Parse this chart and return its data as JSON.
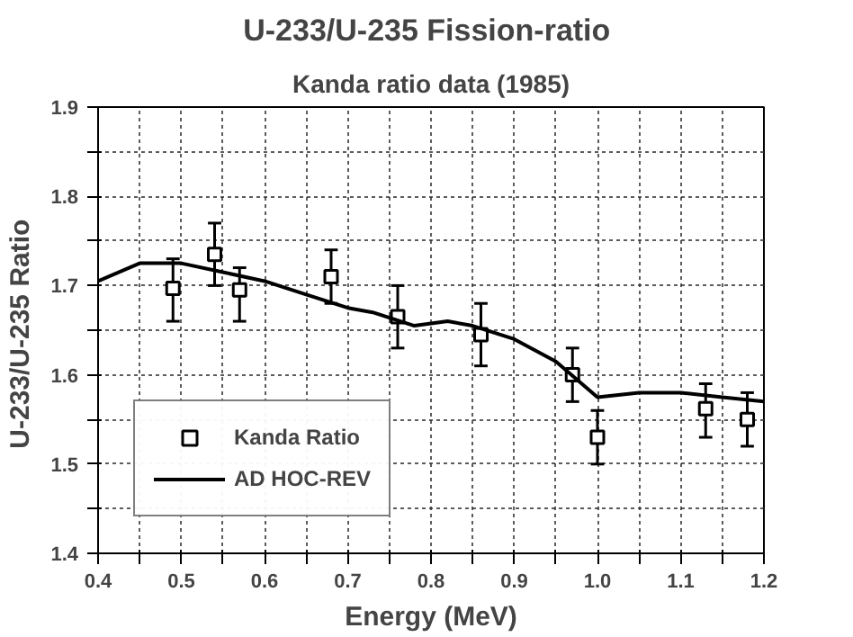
{
  "chart_data": {
    "type": "scatter",
    "title": "U-233/U-235  Fission-ratio",
    "subtitle": "Kanda ratio data (1985)",
    "xlabel": "Energy (MeV)",
    "ylabel": "U-233/U-235  Ratio",
    "xlim": [
      0.4,
      1.2
    ],
    "ylim": [
      1.4,
      1.9
    ],
    "xticks": [
      {
        "value": 0.4,
        "label": "0.4"
      },
      {
        "value": 0.45,
        "label": null
      },
      {
        "value": 0.5,
        "label": "0.5"
      },
      {
        "value": 0.55,
        "label": null
      },
      {
        "value": 0.6,
        "label": "0.6"
      },
      {
        "value": 0.65,
        "label": null
      },
      {
        "value": 0.7,
        "label": "0.7"
      },
      {
        "value": 0.75,
        "label": null
      },
      {
        "value": 0.8,
        "label": "0.8"
      },
      {
        "value": 0.85,
        "label": null
      },
      {
        "value": 0.9,
        "label": "0.9"
      },
      {
        "value": 0.95,
        "label": null
      },
      {
        "value": 1.0,
        "label": "1.0"
      },
      {
        "value": 1.05,
        "label": null
      },
      {
        "value": 1.1,
        "label": "1.1"
      },
      {
        "value": 1.15,
        "label": null
      },
      {
        "value": 1.2,
        "label": "1.2"
      }
    ],
    "yticks": [
      {
        "value": 1.4,
        "label": "1.4"
      },
      {
        "value": 1.45,
        "label": null
      },
      {
        "value": 1.5,
        "label": "1.5"
      },
      {
        "value": 1.55,
        "label": null
      },
      {
        "value": 1.6,
        "label": "1.6"
      },
      {
        "value": 1.65,
        "label": null
      },
      {
        "value": 1.7,
        "label": "1.7"
      },
      {
        "value": 1.75,
        "label": null
      },
      {
        "value": 1.8,
        "label": "1.8"
      },
      {
        "value": 1.85,
        "label": null
      },
      {
        "value": 1.9,
        "label": "1.9"
      }
    ],
    "grid": true,
    "legend": "bottom left",
    "series": [
      {
        "name": "Kanda Ratio",
        "marker": "square",
        "color": "#000000",
        "x": [
          0.49,
          0.54,
          0.57,
          0.68,
          0.76,
          0.86,
          0.97,
          1.0,
          1.13,
          1.18
        ],
        "values": [
          1.697,
          1.735,
          1.695,
          1.71,
          1.665,
          1.645,
          1.6,
          1.53,
          1.562,
          1.55
        ],
        "errors": [
          [
            1.66,
            1.73
          ],
          [
            1.7,
            1.77
          ],
          [
            1.66,
            1.72
          ],
          [
            1.68,
            1.74
          ],
          [
            1.63,
            1.7
          ],
          [
            1.61,
            1.68
          ],
          [
            1.57,
            1.63
          ],
          [
            1.5,
            1.56
          ],
          [
            1.53,
            1.59
          ],
          [
            1.52,
            1.58
          ]
        ]
      },
      {
        "name": "AD HOC-REV",
        "type": "line",
        "line_style": "solid",
        "color": "#000000",
        "x": [
          0.4,
          0.45,
          0.5,
          0.55,
          0.6,
          0.65,
          0.7,
          0.73,
          0.78,
          0.82,
          0.85,
          0.9,
          0.95,
          1.0,
          1.05,
          1.1,
          1.15,
          1.2
        ],
        "values": [
          1.705,
          1.725,
          1.725,
          1.715,
          1.705,
          1.69,
          1.675,
          1.67,
          1.655,
          1.66,
          1.655,
          1.64,
          1.615,
          1.575,
          1.58,
          1.58,
          1.575,
          1.57
        ]
      }
    ]
  }
}
